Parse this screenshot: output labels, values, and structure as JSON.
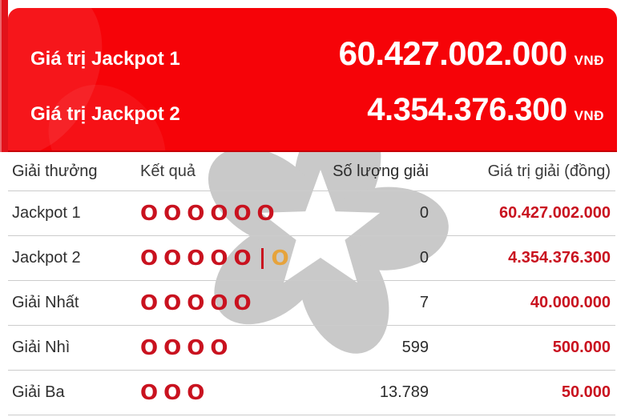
{
  "banner": {
    "rows": [
      {
        "label": "Giá trị Jackpot 1",
        "value": "60.427.002.000",
        "currency": "VNĐ"
      },
      {
        "label": "Giá trị Jackpot 2",
        "value": "4.354.376.300",
        "currency": "VNĐ"
      }
    ]
  },
  "table": {
    "headers": [
      "Giải thưởng",
      "Kết quả",
      "Số lượng giải",
      "Giá trị giải (đồng)"
    ],
    "result_symbol": "O",
    "separator_symbol": "|",
    "rows": [
      {
        "prize": "Jackpot 1",
        "main_symbols": 6,
        "has_separator": false,
        "has_bonus_symbol": false,
        "count": "0",
        "value": "60.427.002.000"
      },
      {
        "prize": "Jackpot 2",
        "main_symbols": 5,
        "has_separator": true,
        "has_bonus_symbol": true,
        "count": "0",
        "value": "4.354.376.300"
      },
      {
        "prize": "Giải Nhất",
        "main_symbols": 5,
        "has_separator": false,
        "has_bonus_symbol": false,
        "count": "7",
        "value": "40.000.000"
      },
      {
        "prize": "Giải Nhì",
        "main_symbols": 4,
        "has_separator": false,
        "has_bonus_symbol": false,
        "count": "599",
        "value": "500.000"
      },
      {
        "prize": "Giải Ba",
        "main_symbols": 3,
        "has_separator": false,
        "has_bonus_symbol": false,
        "count": "13.789",
        "value": "50.000"
      }
    ]
  },
  "colors": {
    "banner_red": "#f60308",
    "strip_red": "#e2121a",
    "accent_red": "#c9121f",
    "bonus_orange": "#e6a33c",
    "watermark_gray": "#c9c9c9",
    "divider_gray": "#cccccc",
    "text_dark": "#3a3a3a"
  },
  "watermark": {
    "name": "vietlott-logo"
  }
}
